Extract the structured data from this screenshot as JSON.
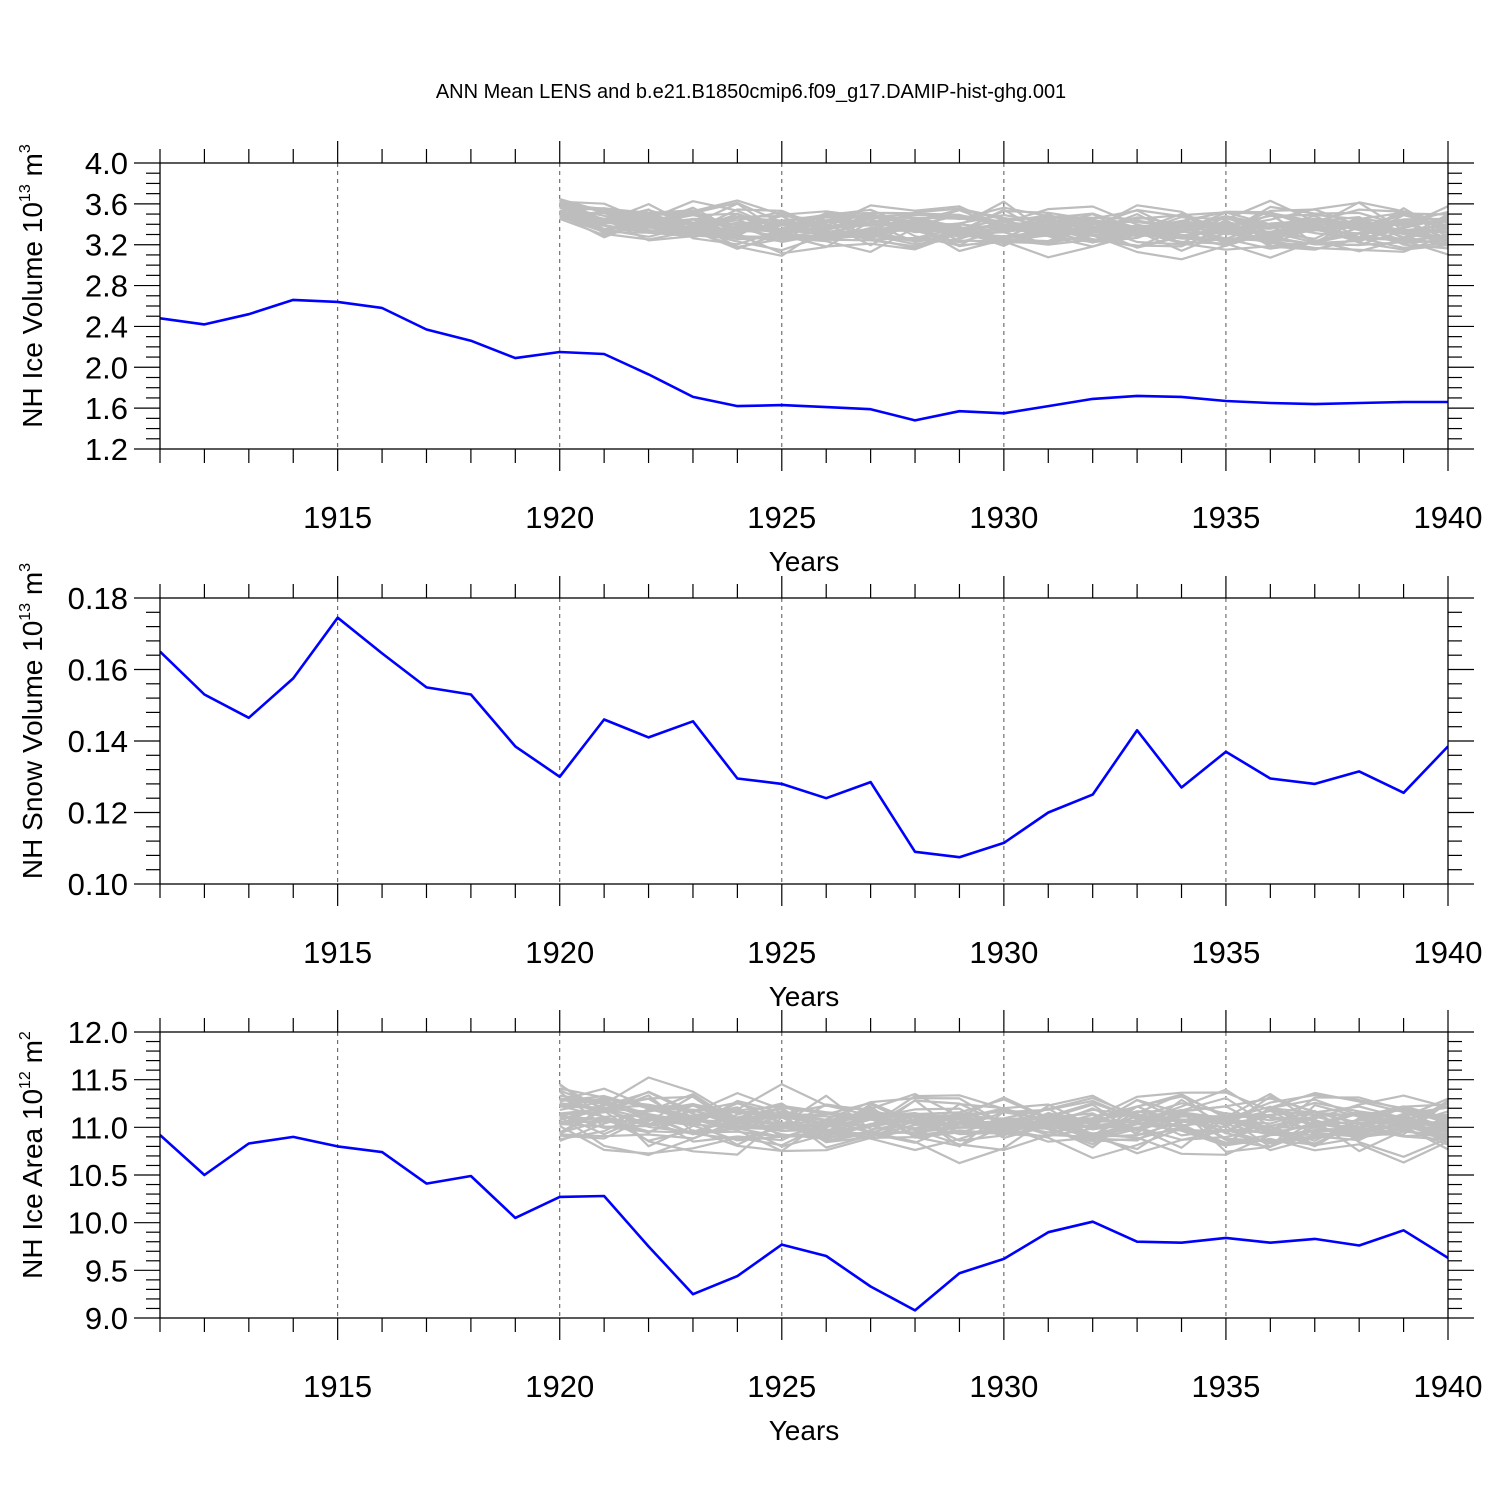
{
  "figure": {
    "title": "ANN Mean LENS and b.e21.B1850cmip6.f09_g17.DAMIP-hist-ghg.001"
  },
  "colors": {
    "main_series": "#0000ff",
    "ensemble": "#bdbdbd",
    "axes": "#000000",
    "grid": "#555555"
  },
  "chart_data": [
    {
      "type": "line",
      "panel": "nh-ice-volume",
      "ylabel": "NH Ice Volume",
      "ylabel_units": {
        "base": "10",
        "exp": "13",
        "unit": "m",
        "unit_exp": "3"
      },
      "xlabel": "Years",
      "xlim": [
        1911,
        1940
      ],
      "ylim": [
        1.2,
        4.0
      ],
      "y_ticks": [
        1.2,
        1.6,
        2.0,
        2.4,
        2.8,
        3.2,
        3.6,
        4.0
      ],
      "y_tick_labels": [
        "1.2",
        "1.6",
        "2.0",
        "2.4",
        "2.8",
        "3.2",
        "3.6",
        "4.0"
      ],
      "y_minor_step": 0.1,
      "x_ticks": [
        1915,
        1920,
        1925,
        1930,
        1935,
        1940
      ],
      "x_tick_labels": [
        "1915",
        "1920",
        "1925",
        "1930",
        "1935",
        "1940"
      ],
      "grid": "dashed vertical at major x ticks",
      "series": [
        {
          "name": "b.e21.B1850cmip6.f09_g17.DAMIP-hist-ghg.001",
          "x": [
            1911,
            1912,
            1913,
            1914,
            1915,
            1916,
            1917,
            1918,
            1919,
            1920,
            1921,
            1922,
            1923,
            1924,
            1925,
            1926,
            1927,
            1928,
            1929,
            1930,
            1931,
            1932,
            1933,
            1934,
            1935,
            1936,
            1937,
            1938,
            1939,
            1940
          ],
          "values": [
            2.48,
            2.42,
            2.52,
            2.66,
            2.64,
            2.58,
            2.37,
            2.26,
            2.09,
            2.15,
            2.13,
            1.93,
            1.71,
            1.62,
            1.63,
            1.61,
            1.59,
            1.48,
            1.57,
            1.55,
            1.62,
            1.69,
            1.72,
            1.71,
            1.67,
            1.65,
            1.64,
            1.65,
            1.66,
            1.66
          ]
        }
      ],
      "ensemble": {
        "name": "LENS",
        "x_start": 1920,
        "x_end": 1940,
        "members": 40,
        "center": 3.35,
        "spread": 0.17,
        "start_values": [
          3.45,
          3.65
        ]
      }
    },
    {
      "type": "line",
      "panel": "nh-snow-volume",
      "ylabel": "NH Snow Volume",
      "ylabel_units": {
        "base": "10",
        "exp": "13",
        "unit": "m",
        "unit_exp": "3"
      },
      "xlabel": "Years",
      "xlim": [
        1911,
        1940
      ],
      "ylim": [
        0.1,
        0.18
      ],
      "y_ticks": [
        0.1,
        0.12,
        0.14,
        0.16,
        0.18
      ],
      "y_tick_labels": [
        "0.10",
        "0.12",
        "0.14",
        "0.16",
        "0.18"
      ],
      "y_minor_step": 0.004,
      "x_ticks": [
        1915,
        1920,
        1925,
        1930,
        1935,
        1940
      ],
      "x_tick_labels": [
        "1915",
        "1920",
        "1925",
        "1930",
        "1935",
        "1940"
      ],
      "grid": "dashed vertical at major x ticks",
      "series": [
        {
          "name": "b.e21.B1850cmip6.f09_g17.DAMIP-hist-ghg.001",
          "x": [
            1911,
            1912,
            1913,
            1914,
            1915,
            1916,
            1917,
            1918,
            1919,
            1920,
            1921,
            1922,
            1923,
            1924,
            1925,
            1926,
            1927,
            1928,
            1929,
            1930,
            1931,
            1932,
            1933,
            1934,
            1935,
            1936,
            1937,
            1938,
            1939,
            1940
          ],
          "values": [
            0.165,
            0.153,
            0.1465,
            0.1575,
            0.1745,
            0.1645,
            0.155,
            0.153,
            0.1385,
            0.13,
            0.146,
            0.141,
            0.1455,
            0.1295,
            0.128,
            0.124,
            0.1285,
            0.109,
            0.1075,
            0.1115,
            0.12,
            0.125,
            0.143,
            0.127,
            0.137,
            0.1295,
            0.128,
            0.1315,
            0.1255,
            0.1385
          ]
        }
      ]
    },
    {
      "type": "line",
      "panel": "nh-ice-area",
      "ylabel": "NH Ice Area",
      "ylabel_units": {
        "base": "10",
        "exp": "12",
        "unit": "m",
        "unit_exp": "2"
      },
      "xlabel": "Years",
      "xlim": [
        1911,
        1940
      ],
      "ylim": [
        9.0,
        12.0
      ],
      "y_ticks": [
        9.0,
        9.5,
        10.0,
        10.5,
        11.0,
        11.5,
        12.0
      ],
      "y_tick_labels": [
        "9.0",
        "9.5",
        "10.0",
        "10.5",
        "11.0",
        "11.5",
        "12.0"
      ],
      "y_minor_step": 0.1,
      "x_ticks": [
        1915,
        1920,
        1925,
        1930,
        1935,
        1940
      ],
      "x_tick_labels": [
        "1915",
        "1920",
        "1925",
        "1930",
        "1935",
        "1940"
      ],
      "grid": "dashed vertical at major x ticks",
      "series": [
        {
          "name": "b.e21.B1850cmip6.f09_g17.DAMIP-hist-ghg.001",
          "x": [
            1911,
            1912,
            1913,
            1914,
            1915,
            1916,
            1917,
            1918,
            1919,
            1920,
            1921,
            1922,
            1923,
            1924,
            1925,
            1926,
            1927,
            1928,
            1929,
            1930,
            1931,
            1932,
            1933,
            1934,
            1935,
            1936,
            1937,
            1938,
            1939,
            1940
          ],
          "values": [
            10.92,
            10.5,
            10.83,
            10.9,
            10.8,
            10.74,
            10.41,
            10.49,
            10.05,
            10.27,
            10.28,
            9.75,
            9.25,
            9.44,
            9.77,
            9.65,
            9.33,
            9.08,
            9.47,
            9.62,
            9.9,
            10.01,
            9.8,
            9.79,
            9.84,
            9.79,
            9.83,
            9.76,
            9.92,
            9.63
          ]
        }
      ],
      "ensemble": {
        "name": "LENS",
        "x_start": 1920,
        "x_end": 1940,
        "members": 40,
        "center": 11.05,
        "spread": 0.24,
        "start_values": [
          10.8,
          11.5
        ]
      }
    }
  ]
}
